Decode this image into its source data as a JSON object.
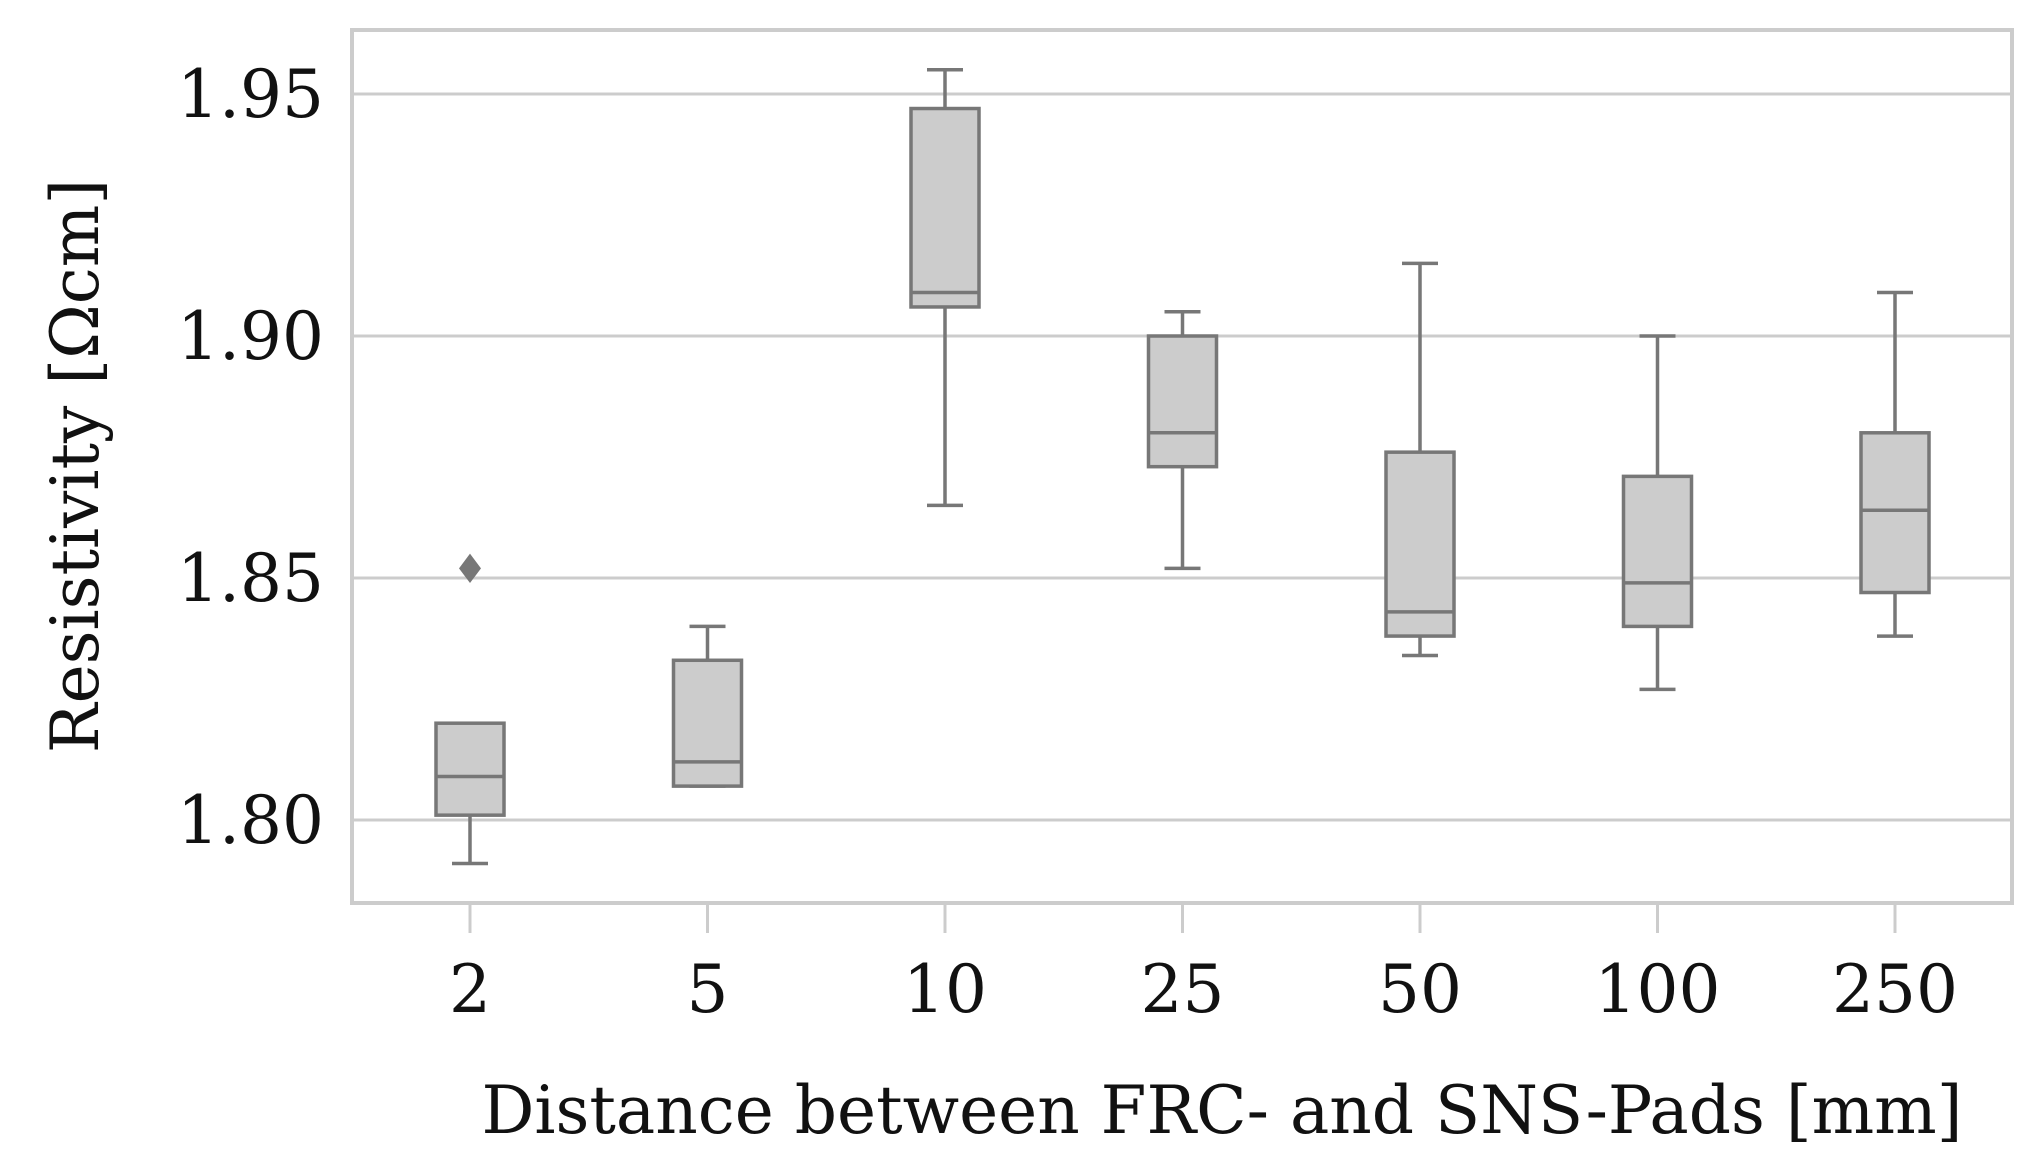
{
  "chart_data": {
    "type": "box",
    "title": "",
    "xlabel": "Distance between FRC- and SNS-Pads [mm]",
    "ylabel": "Resistivity [Ωcm]",
    "ylim": [
      1.783,
      1.96
    ],
    "yticks": [
      "1.80",
      "1.85",
      "1.90",
      "1.95"
    ],
    "grid": true,
    "categories": [
      "2",
      "5",
      "10",
      "25",
      "50",
      "100",
      "250"
    ],
    "boxes": [
      {
        "category": "2",
        "whisker_low": 1.791,
        "q1": 1.801,
        "median": 1.809,
        "q3": 1.82,
        "whisker_high": 1.82,
        "outliers": [
          1.852
        ]
      },
      {
        "category": "5",
        "whisker_low": 1.807,
        "q1": 1.807,
        "median": 1.812,
        "q3": 1.833,
        "whisker_high": 1.84,
        "outliers": []
      },
      {
        "category": "10",
        "whisker_low": 1.865,
        "q1": 1.906,
        "median": 1.909,
        "q3": 1.947,
        "whisker_high": 1.955,
        "outliers": []
      },
      {
        "category": "25",
        "whisker_low": 1.852,
        "q1": 1.873,
        "median": 1.88,
        "q3": 1.9,
        "whisker_high": 1.905,
        "outliers": []
      },
      {
        "category": "50",
        "whisker_low": 1.834,
        "q1": 1.838,
        "median": 1.843,
        "q3": 1.876,
        "whisker_high": 1.915,
        "outliers": []
      },
      {
        "category": "100",
        "whisker_low": 1.827,
        "q1": 1.84,
        "median": 1.849,
        "q3": 1.871,
        "whisker_high": 1.9,
        "outliers": []
      },
      {
        "category": "250",
        "whisker_low": 1.838,
        "q1": 1.847,
        "median": 1.864,
        "q3": 1.88,
        "whisker_high": 1.909,
        "outliers": []
      }
    ],
    "colors": {
      "box_fill": "#cccccc",
      "box_stroke": "#777777",
      "grid": "#cccccc",
      "frame": "#cccccc",
      "outlier": "#777777"
    }
  }
}
